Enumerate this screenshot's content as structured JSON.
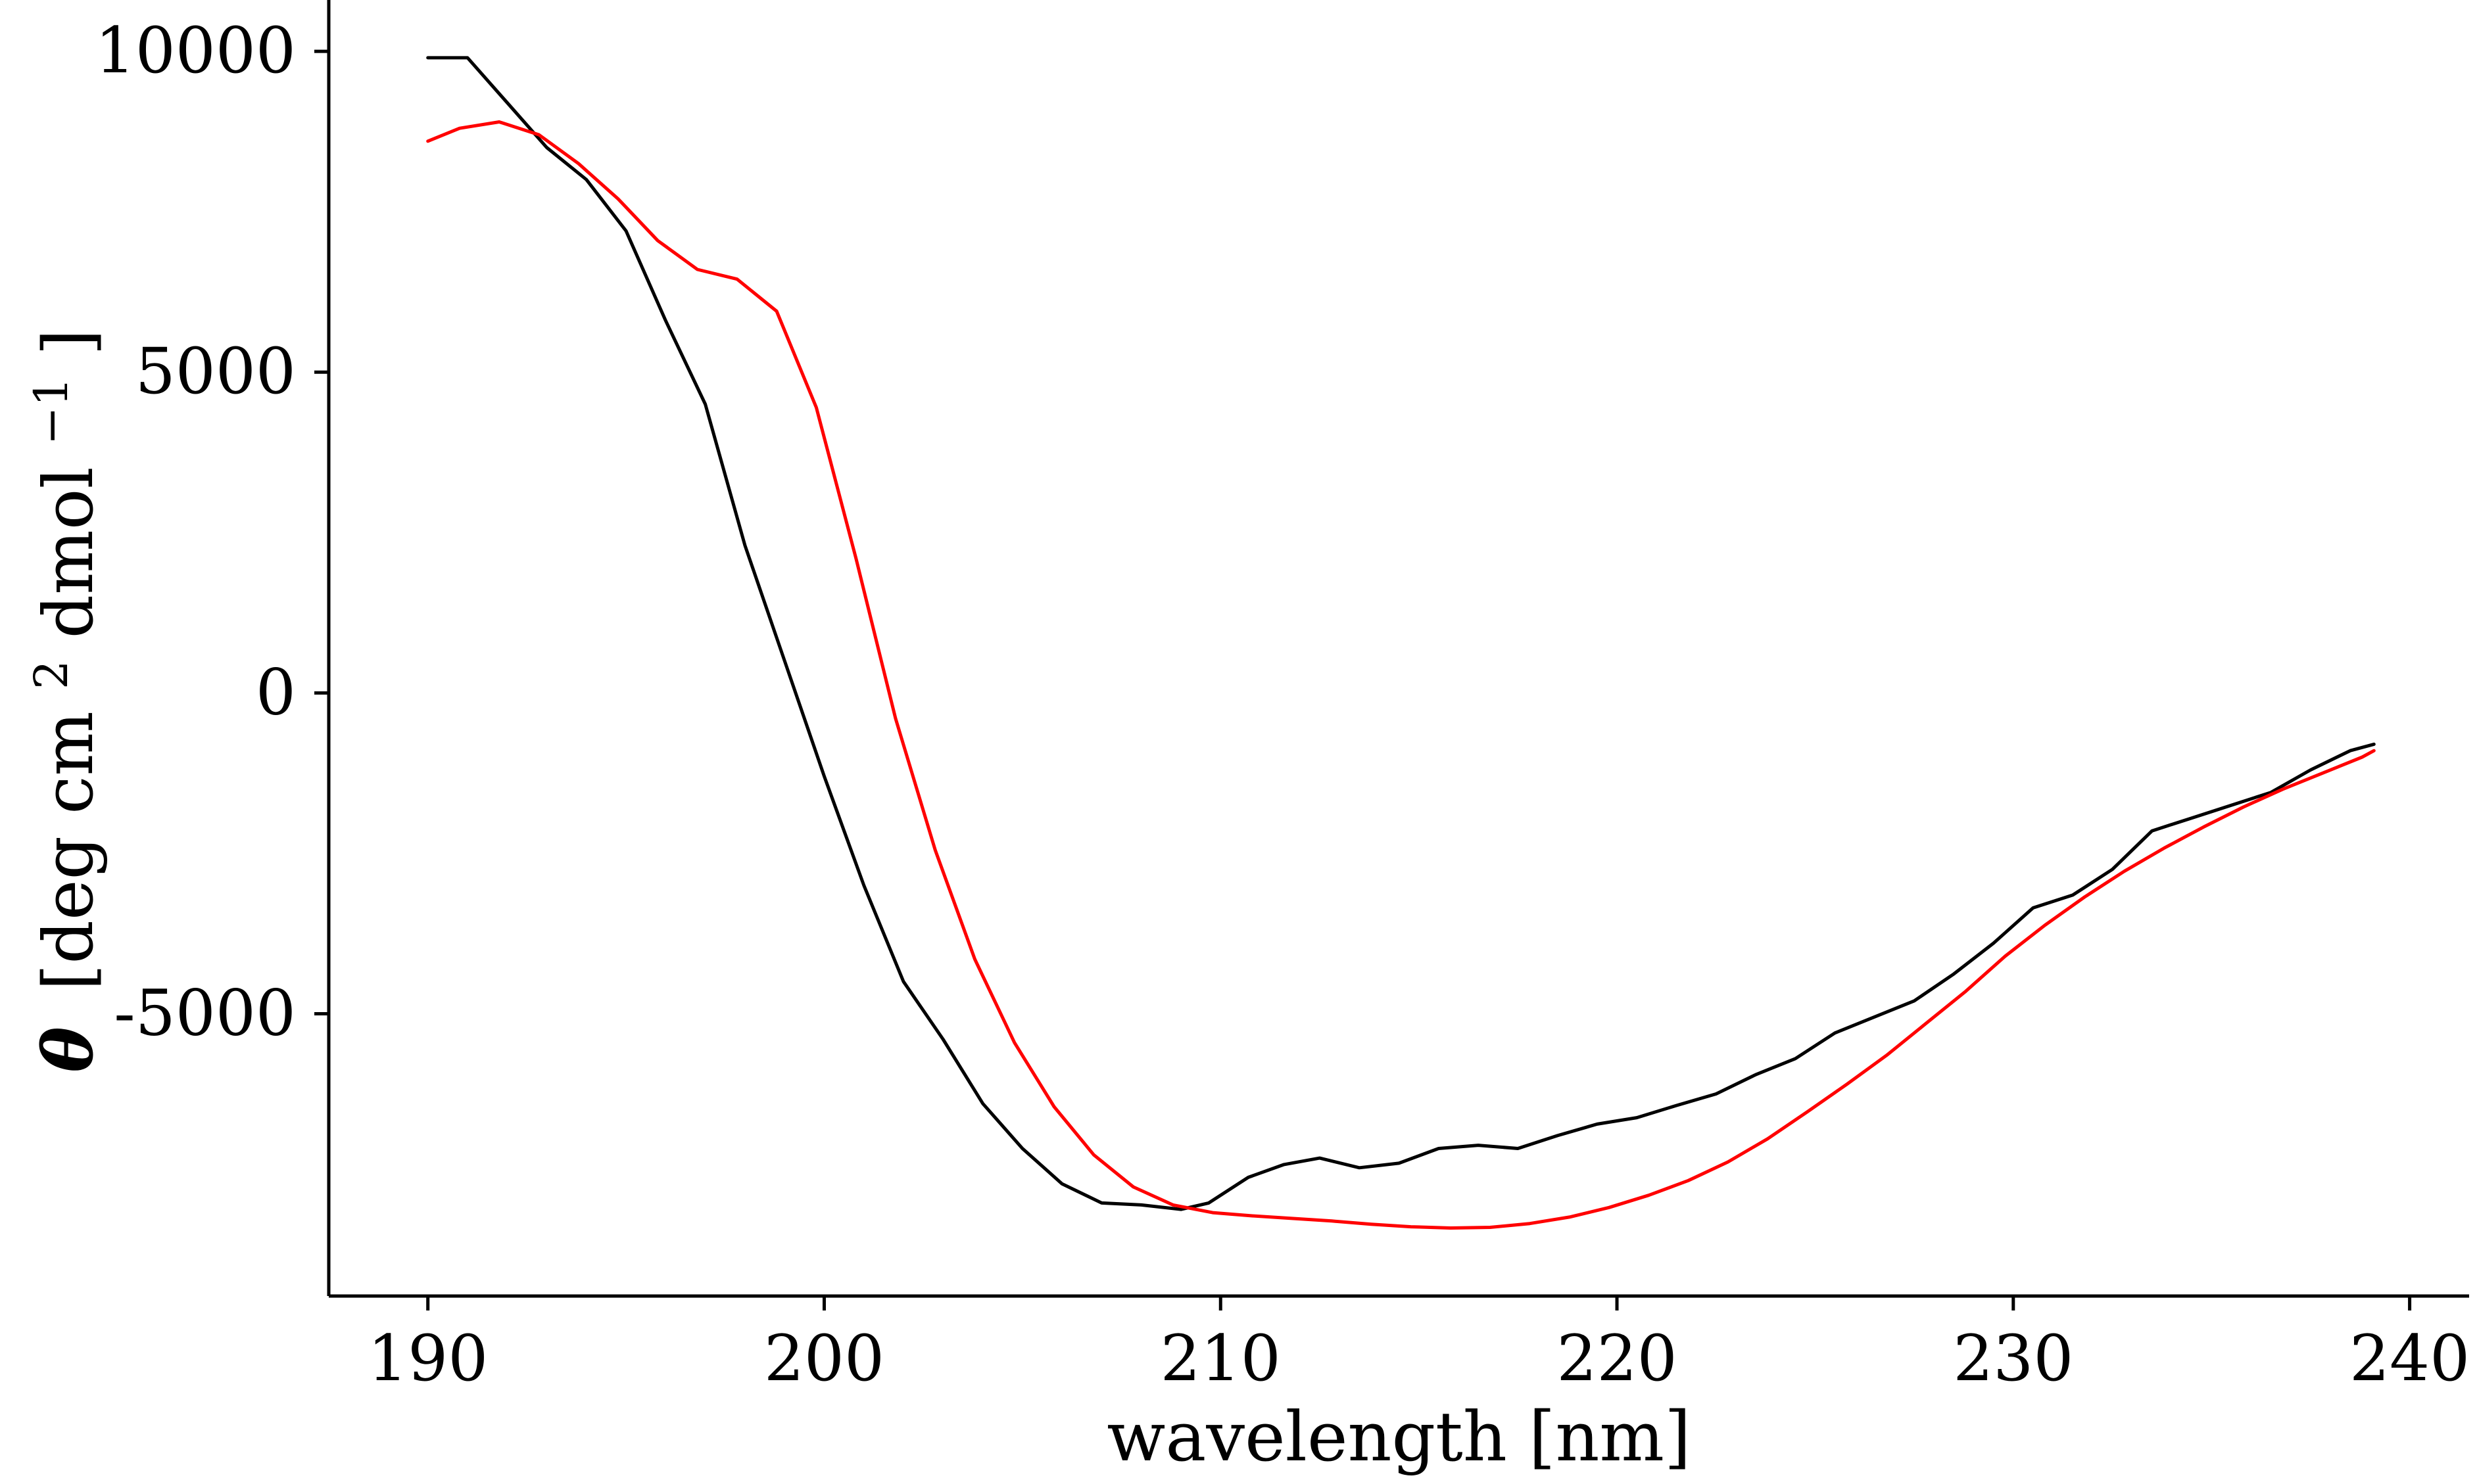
{
  "chart_data": {
    "type": "line",
    "title": "",
    "xlabel": "wavelength [nm]",
    "ylabel": "θ [deg cm² dmol⁻¹]",
    "ylabel_parts": {
      "symbol": "θ",
      "text": "[deg cm",
      "sup1": "2",
      "text2": " dmol",
      "sup2": "−1",
      "text3": "]"
    },
    "xlim": [
      187.5,
      241.5
    ],
    "ylim": [
      -9400,
      10800
    ],
    "xticks": [
      190,
      200,
      210,
      220,
      230,
      240
    ],
    "xtick_labels": [
      "190",
      "200",
      "210",
      "220",
      "230",
      "240"
    ],
    "yticks": [
      10000,
      5000,
      0,
      -5000
    ],
    "ytick_labels": [
      "10000",
      "5000",
      "0",
      "-5000"
    ],
    "grid": false,
    "legend": "none",
    "series": [
      {
        "color": "#000000",
        "x": [
          190,
          191,
          192,
          193,
          194,
          195,
          196,
          197,
          198,
          199,
          200,
          201,
          202,
          203,
          204,
          205,
          206,
          207,
          208,
          209,
          209.7,
          210.7,
          211.6,
          212.5,
          213.5,
          214.5,
          215.5,
          216.5,
          217.5,
          218.5,
          219.5,
          220.5,
          221.5,
          222.5,
          223.5,
          224.5,
          225.5,
          226.5,
          227.5,
          228.5,
          229.5,
          230.5,
          231.5,
          232.5,
          233.5,
          234.5,
          235.5,
          236.5,
          237.5,
          238.5,
          239.1
        ],
        "y": [
          9900,
          9900,
          9200,
          8500,
          8000,
          7200,
          5800,
          4500,
          2300,
          500,
          -1300,
          -3000,
          -4500,
          -5400,
          -6400,
          -7100,
          -7650,
          -7950,
          -7980,
          -8050,
          -7950,
          -7550,
          -7350,
          -7250,
          -7400,
          -7330,
          -7100,
          -7050,
          -7100,
          -6900,
          -6720,
          -6620,
          -6430,
          -6250,
          -5950,
          -5700,
          -5300,
          -5050,
          -4800,
          -4380,
          -3900,
          -3350,
          -3150,
          -2750,
          -2150,
          -1950,
          -1750,
          -1550,
          -1200,
          -900,
          -800
        ]
      },
      {
        "color": "#ff0000",
        "x": [
          190,
          190.8,
          191.8,
          192.8,
          193.8,
          194.8,
          195.8,
          196.8,
          197.8,
          198.8,
          199.8,
          200.8,
          201.8,
          202.8,
          203.8,
          204.8,
          205.8,
          206.8,
          207.8,
          208.8,
          209.8,
          210.8,
          211.8,
          212.8,
          213.8,
          214.8,
          215.8,
          216.8,
          217.8,
          218.8,
          219.8,
          220.8,
          221.8,
          222.8,
          223.8,
          224.8,
          225.8,
          226.8,
          227.8,
          228.8,
          229.8,
          230.8,
          231.8,
          232.8,
          233.8,
          234.8,
          235.8,
          236.8,
          237.8,
          238.8,
          239.1
        ],
        "y": [
          8600,
          8800,
          8900,
          8700,
          8250,
          7700,
          7050,
          6600,
          6450,
          5950,
          4450,
          2100,
          -400,
          -2450,
          -4150,
          -5450,
          -6450,
          -7200,
          -7700,
          -7980,
          -8100,
          -8150,
          -8190,
          -8230,
          -8280,
          -8320,
          -8340,
          -8330,
          -8270,
          -8170,
          -8020,
          -7830,
          -7600,
          -7310,
          -6950,
          -6530,
          -6100,
          -5650,
          -5150,
          -4650,
          -4100,
          -3620,
          -3180,
          -2780,
          -2420,
          -2090,
          -1780,
          -1500,
          -1250,
          -1000,
          -900
        ]
      }
    ]
  }
}
